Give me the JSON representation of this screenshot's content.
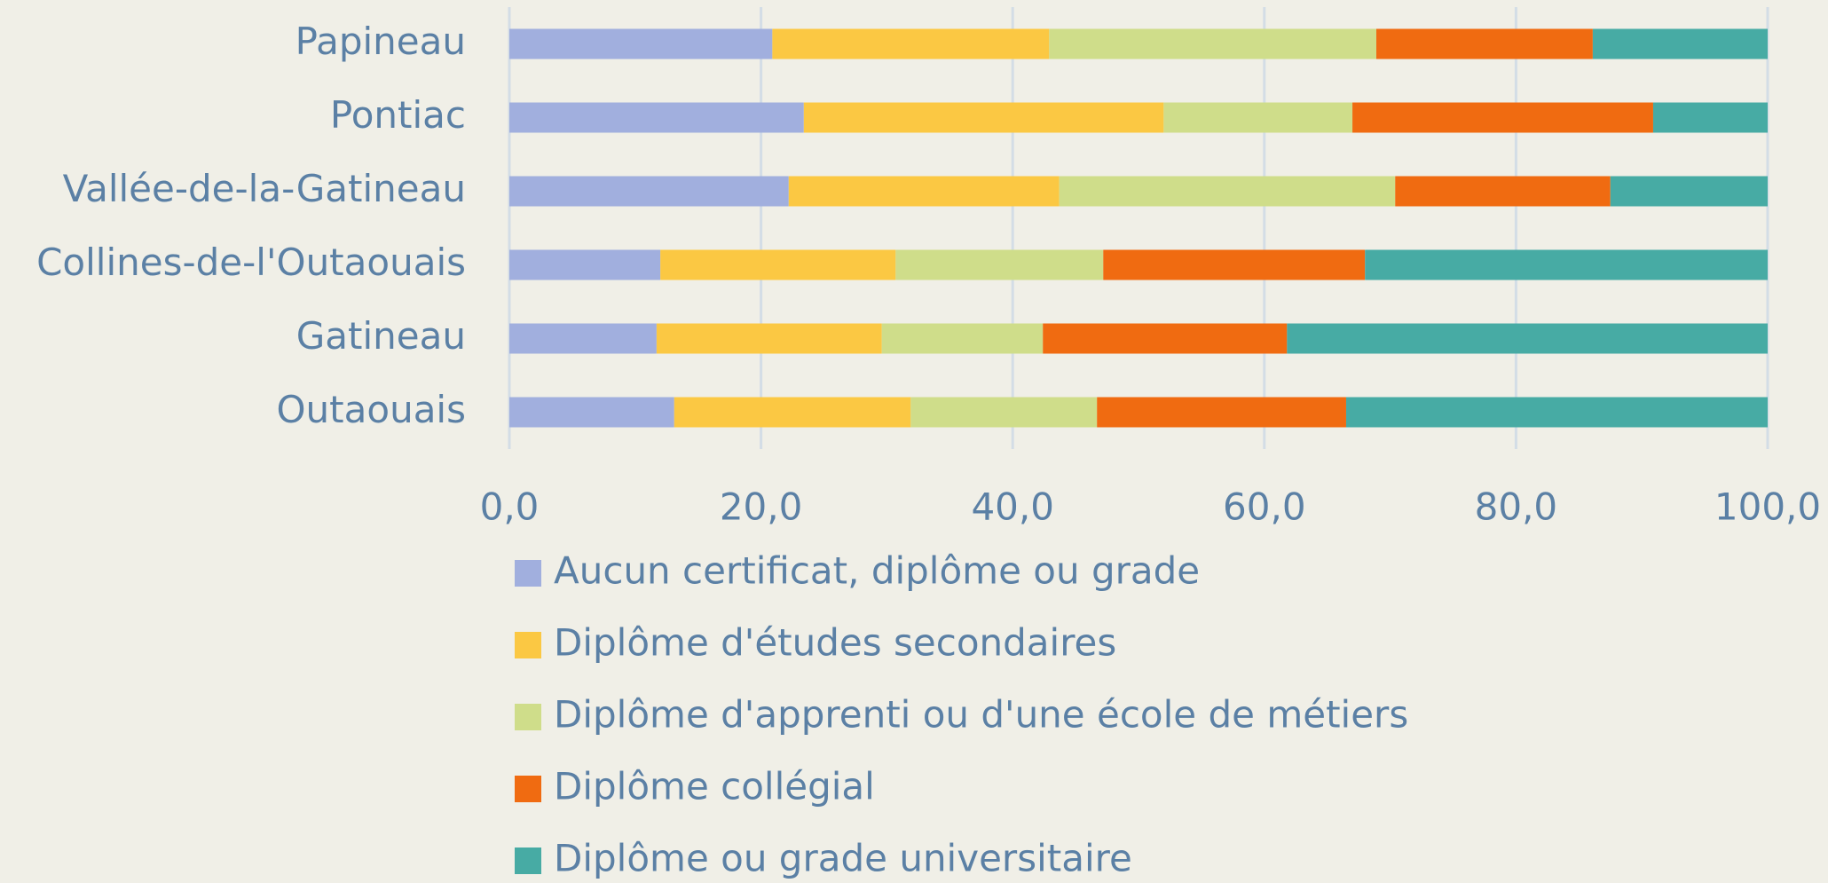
{
  "chart_data": {
    "type": "stacked-bar-horizontal",
    "categories": [
      "Papineau",
      "Pontiac",
      "Vallée-de-la-Gatineau",
      "Collines-de-l'Outaouais",
      "Gatineau",
      "Outaouais"
    ],
    "series": [
      {
        "name": "Aucun certificat, diplôme ou grade",
        "color": "#a1afde",
        "values": [
          20.9,
          23.4,
          22.2,
          12.0,
          11.7,
          13.1
        ]
      },
      {
        "name": "Diplôme d'études secondaires",
        "color": "#fbc843",
        "values": [
          22.0,
          28.6,
          21.5,
          18.7,
          17.9,
          18.8
        ]
      },
      {
        "name": "Diplôme d'apprenti ou d'une école de métiers",
        "color": "#cfdd8a",
        "values": [
          26.0,
          15.0,
          26.7,
          16.5,
          12.8,
          14.8
        ]
      },
      {
        "name": "Diplôme collégial",
        "color": "#f06b11",
        "values": [
          17.2,
          23.9,
          17.1,
          20.8,
          19.4,
          19.8
        ]
      },
      {
        "name": "Diplôme ou grade universitaire",
        "color": "#47aba4",
        "values": [
          13.9,
          9.1,
          12.5,
          32.0,
          38.2,
          33.5
        ]
      }
    ],
    "xlim": [
      0,
      100
    ],
    "xticks": [
      {
        "value": 0,
        "label": "0,0"
      },
      {
        "value": 20,
        "label": "20,0"
      },
      {
        "value": 40,
        "label": "40,0"
      },
      {
        "value": 60,
        "label": "60,0"
      },
      {
        "value": 80,
        "label": "80,0"
      },
      {
        "value": 100,
        "label": "100,0"
      }
    ],
    "grid": true,
    "legend": "bottom"
  }
}
